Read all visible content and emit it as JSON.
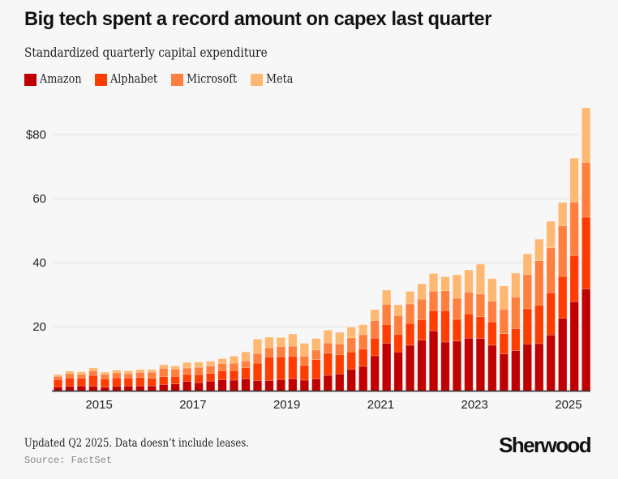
{
  "header": {
    "title": "Big tech spent a record amount on capex last quarter",
    "subtitle": "Standardized quarterly capital expenditure"
  },
  "legend": [
    {
      "label": "Amazon",
      "color": "#c00000"
    },
    {
      "label": "Alphabet",
      "color": "#ff3d00"
    },
    {
      "label": "Microsoft",
      "color": "#ff7f3f"
    },
    {
      "label": "Meta",
      "color": "#ffb872"
    }
  ],
  "footer": {
    "note": "Updated Q2 2025. Data doesn’t include leases.",
    "source": "Source: FactSet",
    "brand": "Sherwood"
  },
  "chart_data": {
    "type": "bar",
    "stacked": true,
    "title": "Big tech spent a record amount on capex last quarter",
    "subtitle": "Standardized quarterly capital expenditure",
    "xlabel": "",
    "ylabel": "",
    "unit": "$ billions",
    "ylim": [
      0,
      90
    ],
    "yticks": [
      20,
      40,
      60,
      80
    ],
    "ytick_labels": [
      "20",
      "40",
      "60",
      "$80"
    ],
    "grid": true,
    "legend_position": "top-left",
    "x_tick_labels": [
      "2015",
      "2017",
      "2019",
      "2021",
      "2023",
      "2025"
    ],
    "categories": [
      "Q1 2014",
      "Q2 2014",
      "Q3 2014",
      "Q4 2014",
      "Q1 2015",
      "Q2 2015",
      "Q3 2015",
      "Q4 2015",
      "Q1 2016",
      "Q2 2016",
      "Q3 2016",
      "Q4 2016",
      "Q1 2017",
      "Q2 2017",
      "Q3 2017",
      "Q4 2017",
      "Q1 2018",
      "Q2 2018",
      "Q3 2018",
      "Q4 2018",
      "Q1 2019",
      "Q2 2019",
      "Q3 2019",
      "Q4 2019",
      "Q1 2020",
      "Q2 2020",
      "Q3 2020",
      "Q4 2020",
      "Q1 2021",
      "Q2 2021",
      "Q3 2021",
      "Q4 2021",
      "Q1 2022",
      "Q2 2022",
      "Q3 2022",
      "Q4 2022",
      "Q1 2023",
      "Q2 2023",
      "Q3 2023",
      "Q4 2023",
      "Q1 2024",
      "Q2 2024",
      "Q3 2024",
      "Q4 2024",
      "Q1 2025",
      "Q2 2025"
    ],
    "series": [
      {
        "name": "Amazon",
        "color": "#c00000",
        "values": [
          1.2,
          1.4,
          1.5,
          1.4,
          1.1,
          1.4,
          1.5,
          1.5,
          1.5,
          1.9,
          2.1,
          2.9,
          2.5,
          3.0,
          3.4,
          3.3,
          3.7,
          3.2,
          3.2,
          3.5,
          3.7,
          3.3,
          3.7,
          4.8,
          5.2,
          6.7,
          7.6,
          10.9,
          14.8,
          12.1,
          14.2,
          15.8,
          18.7,
          15.2,
          15.5,
          16.4,
          16.3,
          14.2,
          11.5,
          12.5,
          14.6,
          14.7,
          17.4,
          22.6,
          27.8,
          31.8
        ]
      },
      {
        "name": "Alphabet",
        "color": "#ff3d00",
        "values": [
          2.3,
          2.6,
          2.4,
          3.4,
          2.6,
          2.6,
          2.5,
          2.6,
          2.4,
          2.5,
          2.4,
          2.2,
          2.5,
          2.4,
          2.8,
          3.0,
          3.5,
          5.4,
          7.3,
          7.1,
          7.1,
          4.6,
          6.0,
          6.9,
          6.0,
          5.4,
          5.4,
          5.5,
          5.9,
          5.5,
          6.8,
          6.4,
          6.3,
          9.8,
          6.8,
          7.6,
          6.8,
          7.3,
          6.3,
          6.9,
          11.0,
          12.0,
          13.2,
          13.1,
          14.4,
          22.4
        ]
      },
      {
        "name": "Microsoft",
        "color": "#ff7f3f",
        "values": [
          1.0,
          1.3,
          1.2,
          1.4,
          1.4,
          1.6,
          1.3,
          1.6,
          1.9,
          2.6,
          2.2,
          2.0,
          2.3,
          2.3,
          2.3,
          2.3,
          2.1,
          3.0,
          2.9,
          3.2,
          3.1,
          2.9,
          3.0,
          3.2,
          3.4,
          4.4,
          4.5,
          5.5,
          6.3,
          5.9,
          6.1,
          6.4,
          6.1,
          6.2,
          6.6,
          6.8,
          7.1,
          6.5,
          7.7,
          9.9,
          10.7,
          13.9,
          14.0,
          15.8,
          16.7,
          17.1
        ]
      },
      {
        "name": "Meta",
        "color": "#ffb872",
        "values": [
          0.5,
          0.8,
          0.8,
          0.9,
          0.7,
          0.8,
          0.9,
          0.9,
          0.8,
          1.1,
          1.0,
          1.7,
          1.6,
          1.5,
          1.5,
          2.2,
          2.8,
          4.5,
          3.3,
          2.8,
          3.8,
          4.0,
          3.6,
          4.0,
          3.6,
          3.3,
          3.1,
          3.4,
          4.4,
          3.3,
          3.9,
          4.8,
          5.5,
          4.4,
          7.3,
          6.9,
          9.3,
          7.0,
          7.2,
          7.4,
          6.4,
          6.7,
          8.3,
          7.3,
          13.7,
          17.0
        ]
      }
    ]
  }
}
